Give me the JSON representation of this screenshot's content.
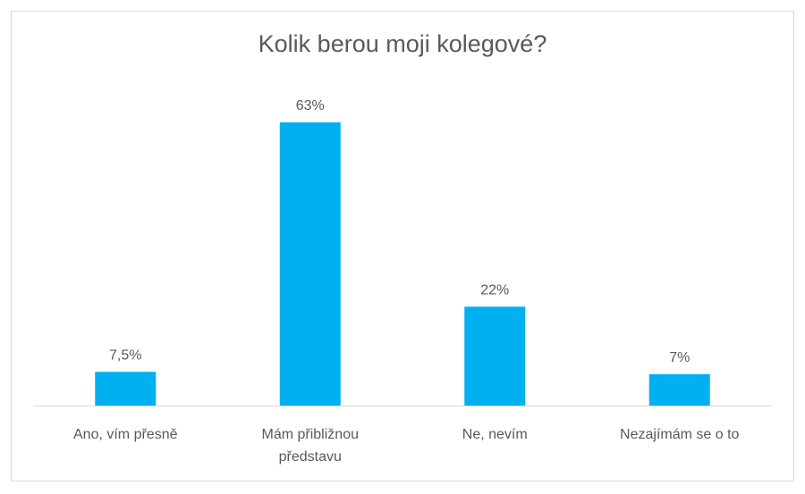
{
  "chart_data": {
    "type": "bar",
    "title": "Kolik berou moji kolegové?",
    "categories": [
      [
        "Ano, vím přesně"
      ],
      [
        "Mám přibližnou",
        "představu"
      ],
      [
        "Ne, nevím"
      ],
      [
        "Nezajímám se o to"
      ]
    ],
    "values": [
      7.5,
      63,
      22,
      7
    ],
    "value_labels": [
      "7,5%",
      "63%",
      "22%",
      "7%"
    ],
    "ylim": [
      0,
      63
    ],
    "grid": false,
    "legend": "none",
    "bar_color": "#00b0f0"
  }
}
